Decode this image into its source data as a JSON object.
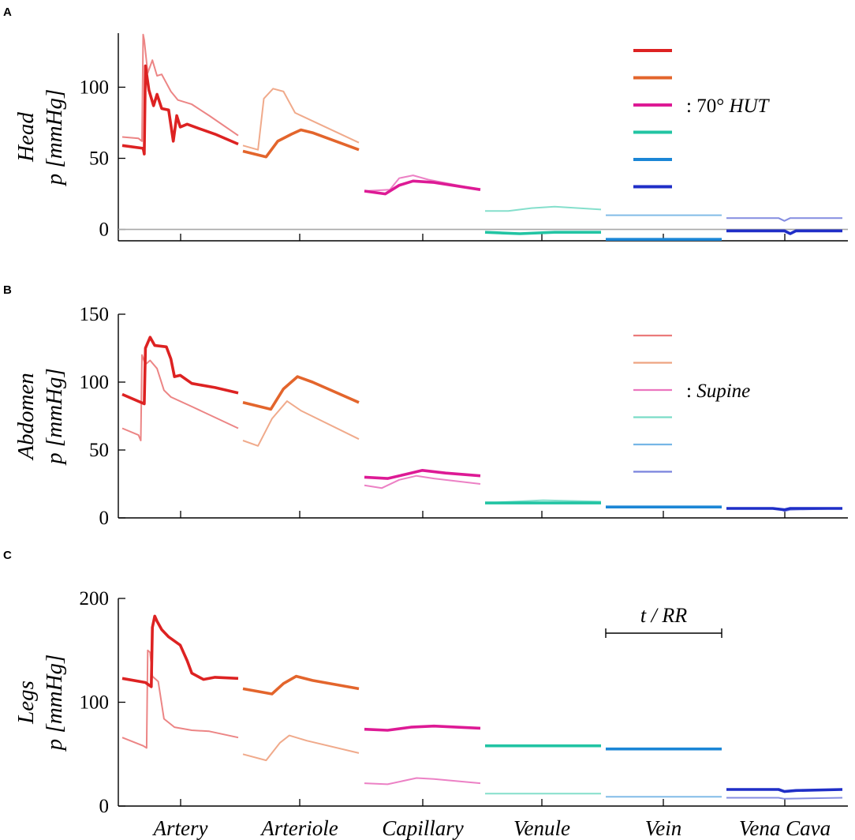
{
  "chart_data": [
    {
      "type": "line",
      "panel_label": "A",
      "ylabel_line1": "Head",
      "ylabel_line2": "p [mmHg]",
      "ylim": [
        -8,
        138
      ],
      "yticks": [
        0,
        50,
        100
      ],
      "xlabel": "",
      "zero_line": true,
      "legend": {
        "label": "70° HUT",
        "swatch": "thick"
      },
      "categories": [
        "Artery",
        "Arteriole",
        "Capillary",
        "Venule",
        "Vein",
        "Vena Cava"
      ],
      "series": [
        {
          "name": "Artery",
          "color": "#dd2222",
          "hut": [
            [
              0,
              59
            ],
            [
              0.18,
              57
            ],
            [
              0.19,
              53
            ],
            [
              0.2,
              115
            ],
            [
              0.23,
              98
            ],
            [
              0.27,
              87
            ],
            [
              0.3,
              95
            ],
            [
              0.34,
              85
            ],
            [
              0.4,
              84
            ],
            [
              0.44,
              62
            ],
            [
              0.47,
              80
            ],
            [
              0.5,
              72
            ],
            [
              0.56,
              74
            ],
            [
              0.66,
              71
            ],
            [
              0.8,
              67
            ],
            [
              1,
              60
            ]
          ],
          "supine": [
            [
              0,
              65
            ],
            [
              0.14,
              64
            ],
            [
              0.17,
              62
            ],
            [
              0.18,
              137
            ],
            [
              0.19,
              133
            ],
            [
              0.22,
              110
            ],
            [
              0.26,
              119
            ],
            [
              0.3,
              108
            ],
            [
              0.34,
              109
            ],
            [
              0.42,
              97
            ],
            [
              0.48,
              91
            ],
            [
              0.6,
              88
            ],
            [
              0.75,
              80
            ],
            [
              1,
              66
            ]
          ]
        },
        {
          "name": "Arteriole",
          "color": "#e3652c",
          "hut": [
            [
              0,
              55
            ],
            [
              0.2,
              51
            ],
            [
              0.3,
              62
            ],
            [
              0.42,
              67
            ],
            [
              0.5,
              70
            ],
            [
              0.6,
              68
            ],
            [
              1,
              56
            ]
          ],
          "supine": [
            [
              0,
              59
            ],
            [
              0.13,
              56
            ],
            [
              0.18,
              92
            ],
            [
              0.26,
              99
            ],
            [
              0.35,
              97
            ],
            [
              0.45,
              82
            ],
            [
              1,
              61
            ]
          ]
        },
        {
          "name": "Capillary",
          "color": "#dd1a95",
          "hut": [
            [
              0,
              27
            ],
            [
              0.18,
              25
            ],
            [
              0.3,
              31
            ],
            [
              0.42,
              34
            ],
            [
              0.6,
              33
            ],
            [
              1,
              28
            ]
          ],
          "supine": [
            [
              0,
              27
            ],
            [
              0.22,
              28
            ],
            [
              0.3,
              36
            ],
            [
              0.42,
              38
            ],
            [
              0.55,
              35
            ],
            [
              1,
              28
            ]
          ]
        },
        {
          "name": "Venule",
          "color": "#22c4a3",
          "hut": [
            [
              0,
              -2
            ],
            [
              0.3,
              -3
            ],
            [
              0.6,
              -2
            ],
            [
              1,
              -2
            ]
          ],
          "supine": [
            [
              0,
              13
            ],
            [
              0.2,
              13
            ],
            [
              0.4,
              15
            ],
            [
              0.6,
              16
            ],
            [
              1,
              14
            ]
          ]
        },
        {
          "name": "Vein",
          "color": "#1b86d6",
          "hut": [
            [
              0,
              -7
            ],
            [
              1,
              -7
            ]
          ],
          "supine": [
            [
              0,
              10
            ],
            [
              1,
              10
            ]
          ]
        },
        {
          "name": "Vena Cava",
          "color": "#1f2ec7",
          "hut": [
            [
              0,
              -1
            ],
            [
              0.4,
              -1
            ],
            [
              0.5,
              -1
            ],
            [
              0.55,
              -3
            ],
            [
              0.6,
              -1
            ],
            [
              1,
              -1
            ]
          ],
          "supine": [
            [
              0,
              8
            ],
            [
              0.45,
              8
            ],
            [
              0.5,
              6
            ],
            [
              0.55,
              8
            ],
            [
              1,
              8
            ]
          ]
        }
      ]
    },
    {
      "type": "line",
      "panel_label": "B",
      "ylabel_line1": "Abdomen",
      "ylabel_line2": "p [mmHg]",
      "ylim": [
        0,
        150
      ],
      "yticks": [
        0,
        50,
        100,
        150
      ],
      "xlabel": "",
      "zero_line": false,
      "legend": {
        "label": "Supine",
        "swatch": "thin"
      },
      "categories": [
        "Artery",
        "Arteriole",
        "Capillary",
        "Venule",
        "Vein",
        "Vena Cava"
      ],
      "series": [
        {
          "name": "Artery",
          "color": "#dd2222",
          "hut": [
            [
              0,
              91
            ],
            [
              0.19,
              84
            ],
            [
              0.2,
              125
            ],
            [
              0.24,
              133
            ],
            [
              0.28,
              127
            ],
            [
              0.38,
              126
            ],
            [
              0.42,
              117
            ],
            [
              0.45,
              104
            ],
            [
              0.5,
              105
            ],
            [
              0.6,
              99
            ],
            [
              0.8,
              96
            ],
            [
              1,
              92
            ]
          ],
          "supine": [
            [
              0,
              66
            ],
            [
              0.14,
              61
            ],
            [
              0.16,
              57
            ],
            [
              0.17,
              120
            ],
            [
              0.2,
              113
            ],
            [
              0.24,
              116
            ],
            [
              0.3,
              110
            ],
            [
              0.36,
              94
            ],
            [
              0.42,
              89
            ],
            [
              0.6,
              82
            ],
            [
              1,
              66
            ]
          ]
        },
        {
          "name": "Arteriole",
          "color": "#e3652c",
          "hut": [
            [
              0,
              85
            ],
            [
              0.24,
              80
            ],
            [
              0.35,
              95
            ],
            [
              0.47,
              104
            ],
            [
              0.6,
              100
            ],
            [
              1,
              85
            ]
          ],
          "supine": [
            [
              0,
              57
            ],
            [
              0.13,
              53
            ],
            [
              0.25,
              73
            ],
            [
              0.38,
              86
            ],
            [
              0.5,
              79
            ],
            [
              1,
              58
            ]
          ]
        },
        {
          "name": "Capillary",
          "color": "#dd1a95",
          "hut": [
            [
              0,
              30
            ],
            [
              0.2,
              29
            ],
            [
              0.35,
              32
            ],
            [
              0.5,
              35
            ],
            [
              0.7,
              33
            ],
            [
              1,
              31
            ]
          ],
          "supine": [
            [
              0,
              24
            ],
            [
              0.15,
              22
            ],
            [
              0.3,
              28
            ],
            [
              0.45,
              31
            ],
            [
              0.6,
              29
            ],
            [
              1,
              25
            ]
          ]
        },
        {
          "name": "Venule",
          "color": "#22c4a3",
          "hut": [
            [
              0,
              11
            ],
            [
              0.5,
              11
            ],
            [
              1,
              11
            ]
          ],
          "supine": [
            [
              0,
              11
            ],
            [
              0.5,
              13
            ],
            [
              1,
              12
            ]
          ]
        },
        {
          "name": "Vein",
          "color": "#1b86d6",
          "hut": [
            [
              0,
              8
            ],
            [
              1,
              8
            ]
          ],
          "supine": [
            [
              0,
              8
            ],
            [
              1,
              8
            ]
          ]
        },
        {
          "name": "Vena Cava",
          "color": "#1f2ec7",
          "hut": [
            [
              0,
              7
            ],
            [
              0.4,
              7
            ],
            [
              0.5,
              6
            ],
            [
              0.55,
              7
            ],
            [
              1,
              7
            ]
          ],
          "supine": [
            [
              0,
              7
            ],
            [
              0.45,
              7
            ],
            [
              0.5,
              5
            ],
            [
              0.55,
              6
            ],
            [
              1,
              7
            ]
          ]
        }
      ]
    },
    {
      "type": "line",
      "panel_label": "C",
      "ylabel_line1": "Legs",
      "ylabel_line2": "p [mmHg]",
      "ylim": [
        0,
        200
      ],
      "yticks": [
        0,
        100,
        200
      ],
      "xlabel": "",
      "zero_line": false,
      "time_scale": {
        "label": "t / RR"
      },
      "categories": [
        "Artery",
        "Arteriole",
        "Capillary",
        "Venule",
        "Vein",
        "Vena Cava"
      ],
      "series": [
        {
          "name": "Artery",
          "color": "#dd2222",
          "hut": [
            [
              0,
              123
            ],
            [
              0.2,
              119
            ],
            [
              0.25,
              115
            ],
            [
              0.26,
              172
            ],
            [
              0.28,
              183
            ],
            [
              0.3,
              178
            ],
            [
              0.34,
              170
            ],
            [
              0.4,
              163
            ],
            [
              0.5,
              155
            ],
            [
              0.56,
              140
            ],
            [
              0.6,
              128
            ],
            [
              0.7,
              122
            ],
            [
              0.8,
              124
            ],
            [
              1,
              123
            ]
          ],
          "supine": [
            [
              0,
              66
            ],
            [
              0.18,
              58
            ],
            [
              0.21,
              56
            ],
            [
              0.22,
              150
            ],
            [
              0.24,
              148
            ],
            [
              0.26,
              125
            ],
            [
              0.31,
              120
            ],
            [
              0.36,
              84
            ],
            [
              0.45,
              76
            ],
            [
              0.6,
              73
            ],
            [
              0.75,
              72
            ],
            [
              1,
              66
            ]
          ]
        },
        {
          "name": "Arteriole",
          "color": "#e3652c",
          "hut": [
            [
              0,
              113
            ],
            [
              0.25,
              108
            ],
            [
              0.35,
              118
            ],
            [
              0.46,
              125
            ],
            [
              0.6,
              121
            ],
            [
              1,
              113
            ]
          ],
          "supine": [
            [
              0,
              50
            ],
            [
              0.2,
              44
            ],
            [
              0.32,
              61
            ],
            [
              0.4,
              68
            ],
            [
              0.55,
              63
            ],
            [
              1,
              51
            ]
          ]
        },
        {
          "name": "Capillary",
          "color": "#dd1a95",
          "hut": [
            [
              0,
              74
            ],
            [
              0.2,
              73
            ],
            [
              0.4,
              76
            ],
            [
              0.6,
              77
            ],
            [
              1,
              75
            ]
          ],
          "supine": [
            [
              0,
              22
            ],
            [
              0.2,
              21
            ],
            [
              0.45,
              27
            ],
            [
              0.6,
              26
            ],
            [
              1,
              22
            ]
          ]
        },
        {
          "name": "Venule",
          "color": "#22c4a3",
          "hut": [
            [
              0,
              58
            ],
            [
              1,
              58
            ]
          ],
          "supine": [
            [
              0,
              12
            ],
            [
              0.5,
              12
            ],
            [
              1,
              12
            ]
          ]
        },
        {
          "name": "Vein",
          "color": "#1b86d6",
          "hut": [
            [
              0,
              55
            ],
            [
              1,
              55
            ]
          ],
          "supine": [
            [
              0,
              9
            ],
            [
              1,
              9
            ]
          ]
        },
        {
          "name": "Vena Cava",
          "color": "#1f2ec7",
          "hut": [
            [
              0,
              16
            ],
            [
              0.45,
              16
            ],
            [
              0.5,
              14
            ],
            [
              0.6,
              15
            ],
            [
              1,
              16
            ]
          ],
          "supine": [
            [
              0,
              8
            ],
            [
              0.45,
              8
            ],
            [
              0.5,
              7
            ],
            [
              1,
              8
            ]
          ]
        }
      ]
    }
  ]
}
